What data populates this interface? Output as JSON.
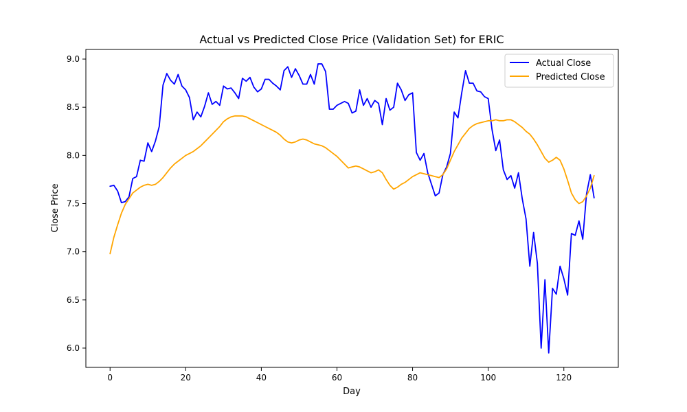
{
  "chart_data": {
    "type": "line",
    "title": "Actual vs Predicted Close Price (Validation Set) for ERIC",
    "xlabel": "Day",
    "ylabel": "Close Price",
    "xlim": [
      -6.4,
      134.4
    ],
    "ylim": [
      5.8,
      9.1
    ],
    "xticks": [
      0,
      20,
      40,
      60,
      80,
      100,
      120
    ],
    "yticks": [
      6.0,
      6.5,
      7.0,
      7.5,
      8.0,
      8.5,
      9.0
    ],
    "ytick_labels": [
      "6.0",
      "6.5",
      "7.0",
      "7.5",
      "8.0",
      "8.5",
      "9.0"
    ],
    "grid": false,
    "legend_position": "top-right",
    "series": [
      {
        "name": "Actual Close",
        "color": "#0000ff",
        "values": [
          7.68,
          7.69,
          7.63,
          7.51,
          7.52,
          7.57,
          7.76,
          7.78,
          7.95,
          7.94,
          8.13,
          8.04,
          8.15,
          8.3,
          8.73,
          8.85,
          8.78,
          8.74,
          8.84,
          8.72,
          8.68,
          8.6,
          8.37,
          8.45,
          8.4,
          8.51,
          8.65,
          8.53,
          8.56,
          8.52,
          8.72,
          8.69,
          8.7,
          8.65,
          8.59,
          8.8,
          8.77,
          8.81,
          8.71,
          8.66,
          8.69,
          8.79,
          8.79,
          8.75,
          8.72,
          8.68,
          8.88,
          8.92,
          8.81,
          8.9,
          8.83,
          8.74,
          8.74,
          8.84,
          8.74,
          8.95,
          8.95,
          8.87,
          8.48,
          8.48,
          8.52,
          8.54,
          8.56,
          8.54,
          8.44,
          8.46,
          8.68,
          8.52,
          8.59,
          8.5,
          8.57,
          8.54,
          8.32,
          8.59,
          8.47,
          8.5,
          8.75,
          8.68,
          8.57,
          8.63,
          8.65,
          8.03,
          7.95,
          8.02,
          7.82,
          7.7,
          7.58,
          7.61,
          7.8,
          7.88,
          8.02,
          8.45,
          8.39,
          8.65,
          8.88,
          8.75,
          8.75,
          8.67,
          8.66,
          8.61,
          8.59,
          8.27,
          8.05,
          8.16,
          7.85,
          7.75,
          7.79,
          7.66,
          7.82,
          7.55,
          7.34,
          6.85,
          7.2,
          6.88,
          6.0,
          6.71,
          5.95,
          6.62,
          6.56,
          6.85,
          6.72,
          6.55,
          7.19,
          7.17,
          7.32,
          7.13,
          7.6,
          7.8,
          7.56
        ]
      },
      {
        "name": "Predicted Close",
        "color": "#ffa500",
        "values": [
          6.98,
          7.15,
          7.28,
          7.4,
          7.49,
          7.55,
          7.61,
          7.64,
          7.67,
          7.69,
          7.7,
          7.69,
          7.7,
          7.73,
          7.77,
          7.82,
          7.87,
          7.91,
          7.94,
          7.97,
          8.0,
          8.02,
          8.04,
          8.07,
          8.1,
          8.14,
          8.18,
          8.22,
          8.26,
          8.3,
          8.35,
          8.38,
          8.4,
          8.41,
          8.41,
          8.41,
          8.4,
          8.38,
          8.36,
          8.34,
          8.32,
          8.3,
          8.28,
          8.26,
          8.24,
          8.21,
          8.17,
          8.14,
          8.13,
          8.14,
          8.16,
          8.17,
          8.16,
          8.14,
          8.12,
          8.11,
          8.1,
          8.08,
          8.05,
          8.02,
          7.99,
          7.95,
          7.91,
          7.87,
          7.88,
          7.89,
          7.88,
          7.86,
          7.84,
          7.82,
          7.83,
          7.85,
          7.82,
          7.75,
          7.69,
          7.65,
          7.67,
          7.7,
          7.72,
          7.75,
          7.78,
          7.8,
          7.82,
          7.81,
          7.8,
          7.79,
          7.78,
          7.77,
          7.8,
          7.86,
          7.95,
          8.04,
          8.11,
          8.18,
          8.23,
          8.28,
          8.31,
          8.33,
          8.34,
          8.35,
          8.36,
          8.36,
          8.37,
          8.36,
          8.36,
          8.37,
          8.37,
          8.35,
          8.32,
          8.29,
          8.25,
          8.22,
          8.17,
          8.11,
          8.04,
          7.97,
          7.93,
          7.95,
          7.98,
          7.95,
          7.86,
          7.74,
          7.61,
          7.54,
          7.5,
          7.52,
          7.58,
          7.66,
          7.79
        ]
      }
    ]
  }
}
